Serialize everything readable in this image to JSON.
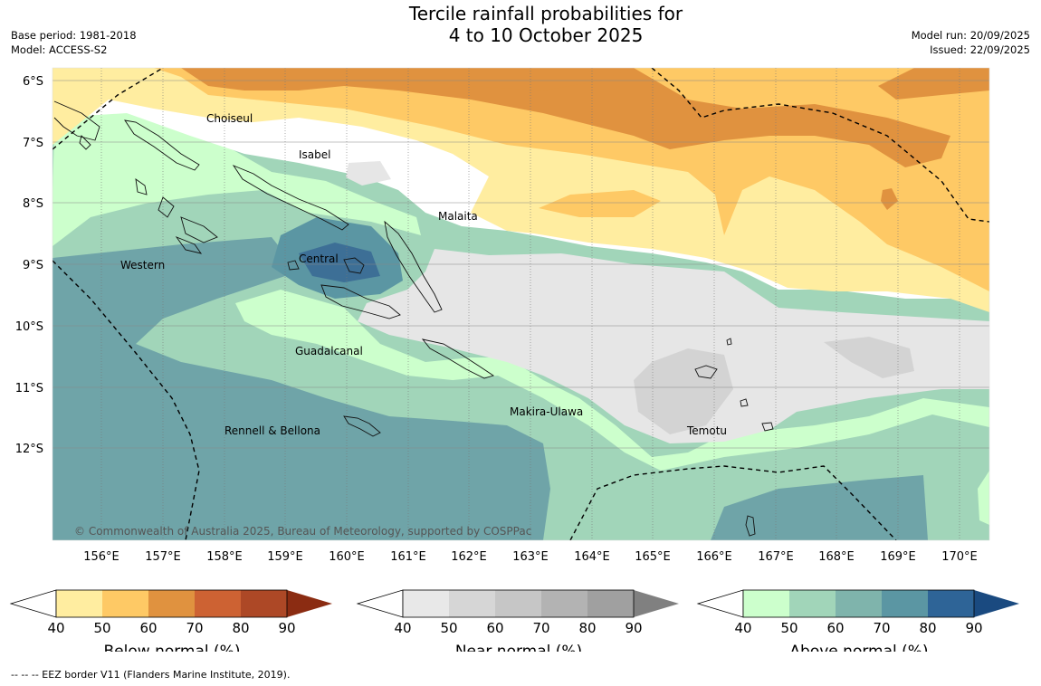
{
  "title_line1": "Tercile rainfall probabilities for",
  "title_line2": "4 to 10 October 2025",
  "base_period": "Base period: 1981-2018",
  "model": "Model: ACCESS-S2",
  "model_run": "Model run: 20/09/2025",
  "issued": "Issued: 22/09/2025",
  "copyright": "© Commonwealth of Australia 2025, Bureau of Meteorology, supported by COSPPac",
  "footnote": "-- -- -- EEZ border V11 (Flanders Marine Institute, 2019).",
  "map": {
    "lat_labels": [
      "6°S",
      "7°S",
      "8°S",
      "9°S",
      "10°S",
      "11°S",
      "12°S"
    ],
    "lon_labels": [
      "156°E",
      "157°E",
      "158°E",
      "159°E",
      "160°E",
      "161°E",
      "162°E",
      "163°E",
      "164°E",
      "165°E",
      "166°E",
      "167°E",
      "168°E",
      "169°E",
      "170°E"
    ],
    "place_names": [
      "Choiseul",
      "Isabel",
      "Malaita",
      "Western",
      "Central",
      "Guadalcanal",
      "Makira-Ulawa",
      "Temotu",
      "Rennell & Bellona"
    ]
  },
  "colorbars": [
    {
      "label": "Below normal (%)",
      "ticks": [
        "40",
        "50",
        "60",
        "70",
        "80",
        "90"
      ],
      "colors": [
        "#ffeda0",
        "#fec965",
        "#e0923f",
        "#cd6233",
        "#ad4826",
        "#8b2c12"
      ]
    },
    {
      "label": "Near normal (%)",
      "ticks": [
        "40",
        "50",
        "60",
        "70",
        "80",
        "90"
      ],
      "colors": [
        "#e8e8e8",
        "#d6d6d6",
        "#c6c6c6",
        "#b3b3b3",
        "#a0a0a0",
        "#808080"
      ]
    },
    {
      "label": "Above normal (%)",
      "ticks": [
        "40",
        "50",
        "60",
        "70",
        "80",
        "90"
      ],
      "colors": [
        "#ccffcc",
        "#a1d5b9",
        "#7fb4ac",
        "#5b96a3",
        "#2e6497",
        "#1a4a80"
      ]
    }
  ]
}
